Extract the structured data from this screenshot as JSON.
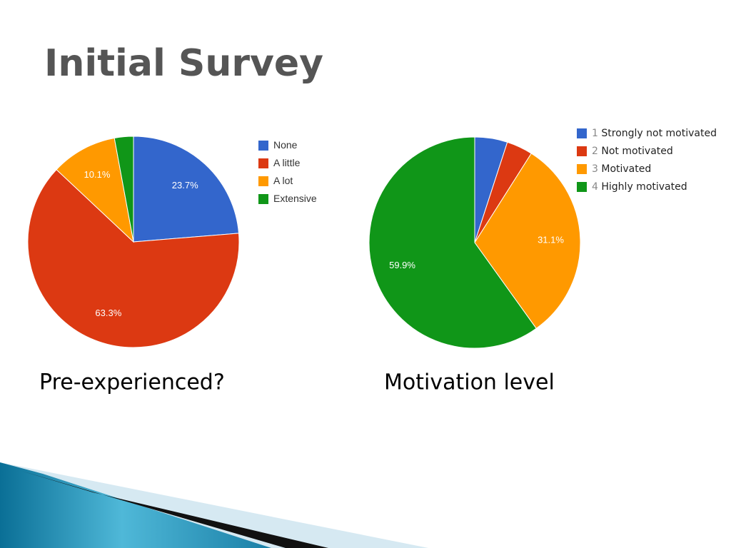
{
  "title": "Initial Survey",
  "chart_data": [
    {
      "type": "pie",
      "title": "Pre-experienced?",
      "categories": [
        "None",
        "A little",
        "A lot",
        "Extensive"
      ],
      "values": [
        23.7,
        63.3,
        10.1,
        2.9
      ],
      "value_labels": [
        "23.7%",
        "63.3%",
        "10.1%",
        null
      ],
      "colors": [
        "#3366cc",
        "#dc3912",
        "#ff9900",
        "#109618"
      ],
      "legend": "right"
    },
    {
      "type": "pie",
      "title": "Motivation level",
      "categories": [
        "Strongly not motivated",
        "Not motivated",
        "Motivated",
        "Highly motivated"
      ],
      "legend_prefixes": [
        "1",
        "2",
        "3",
        "4"
      ],
      "values": [
        5.0,
        4.0,
        31.1,
        59.9
      ],
      "value_labels": [
        null,
        null,
        "31.1%",
        "59.9%"
      ],
      "colors": [
        "#3366cc",
        "#dc3912",
        "#ff9900",
        "#109618"
      ],
      "legend": "right"
    }
  ]
}
